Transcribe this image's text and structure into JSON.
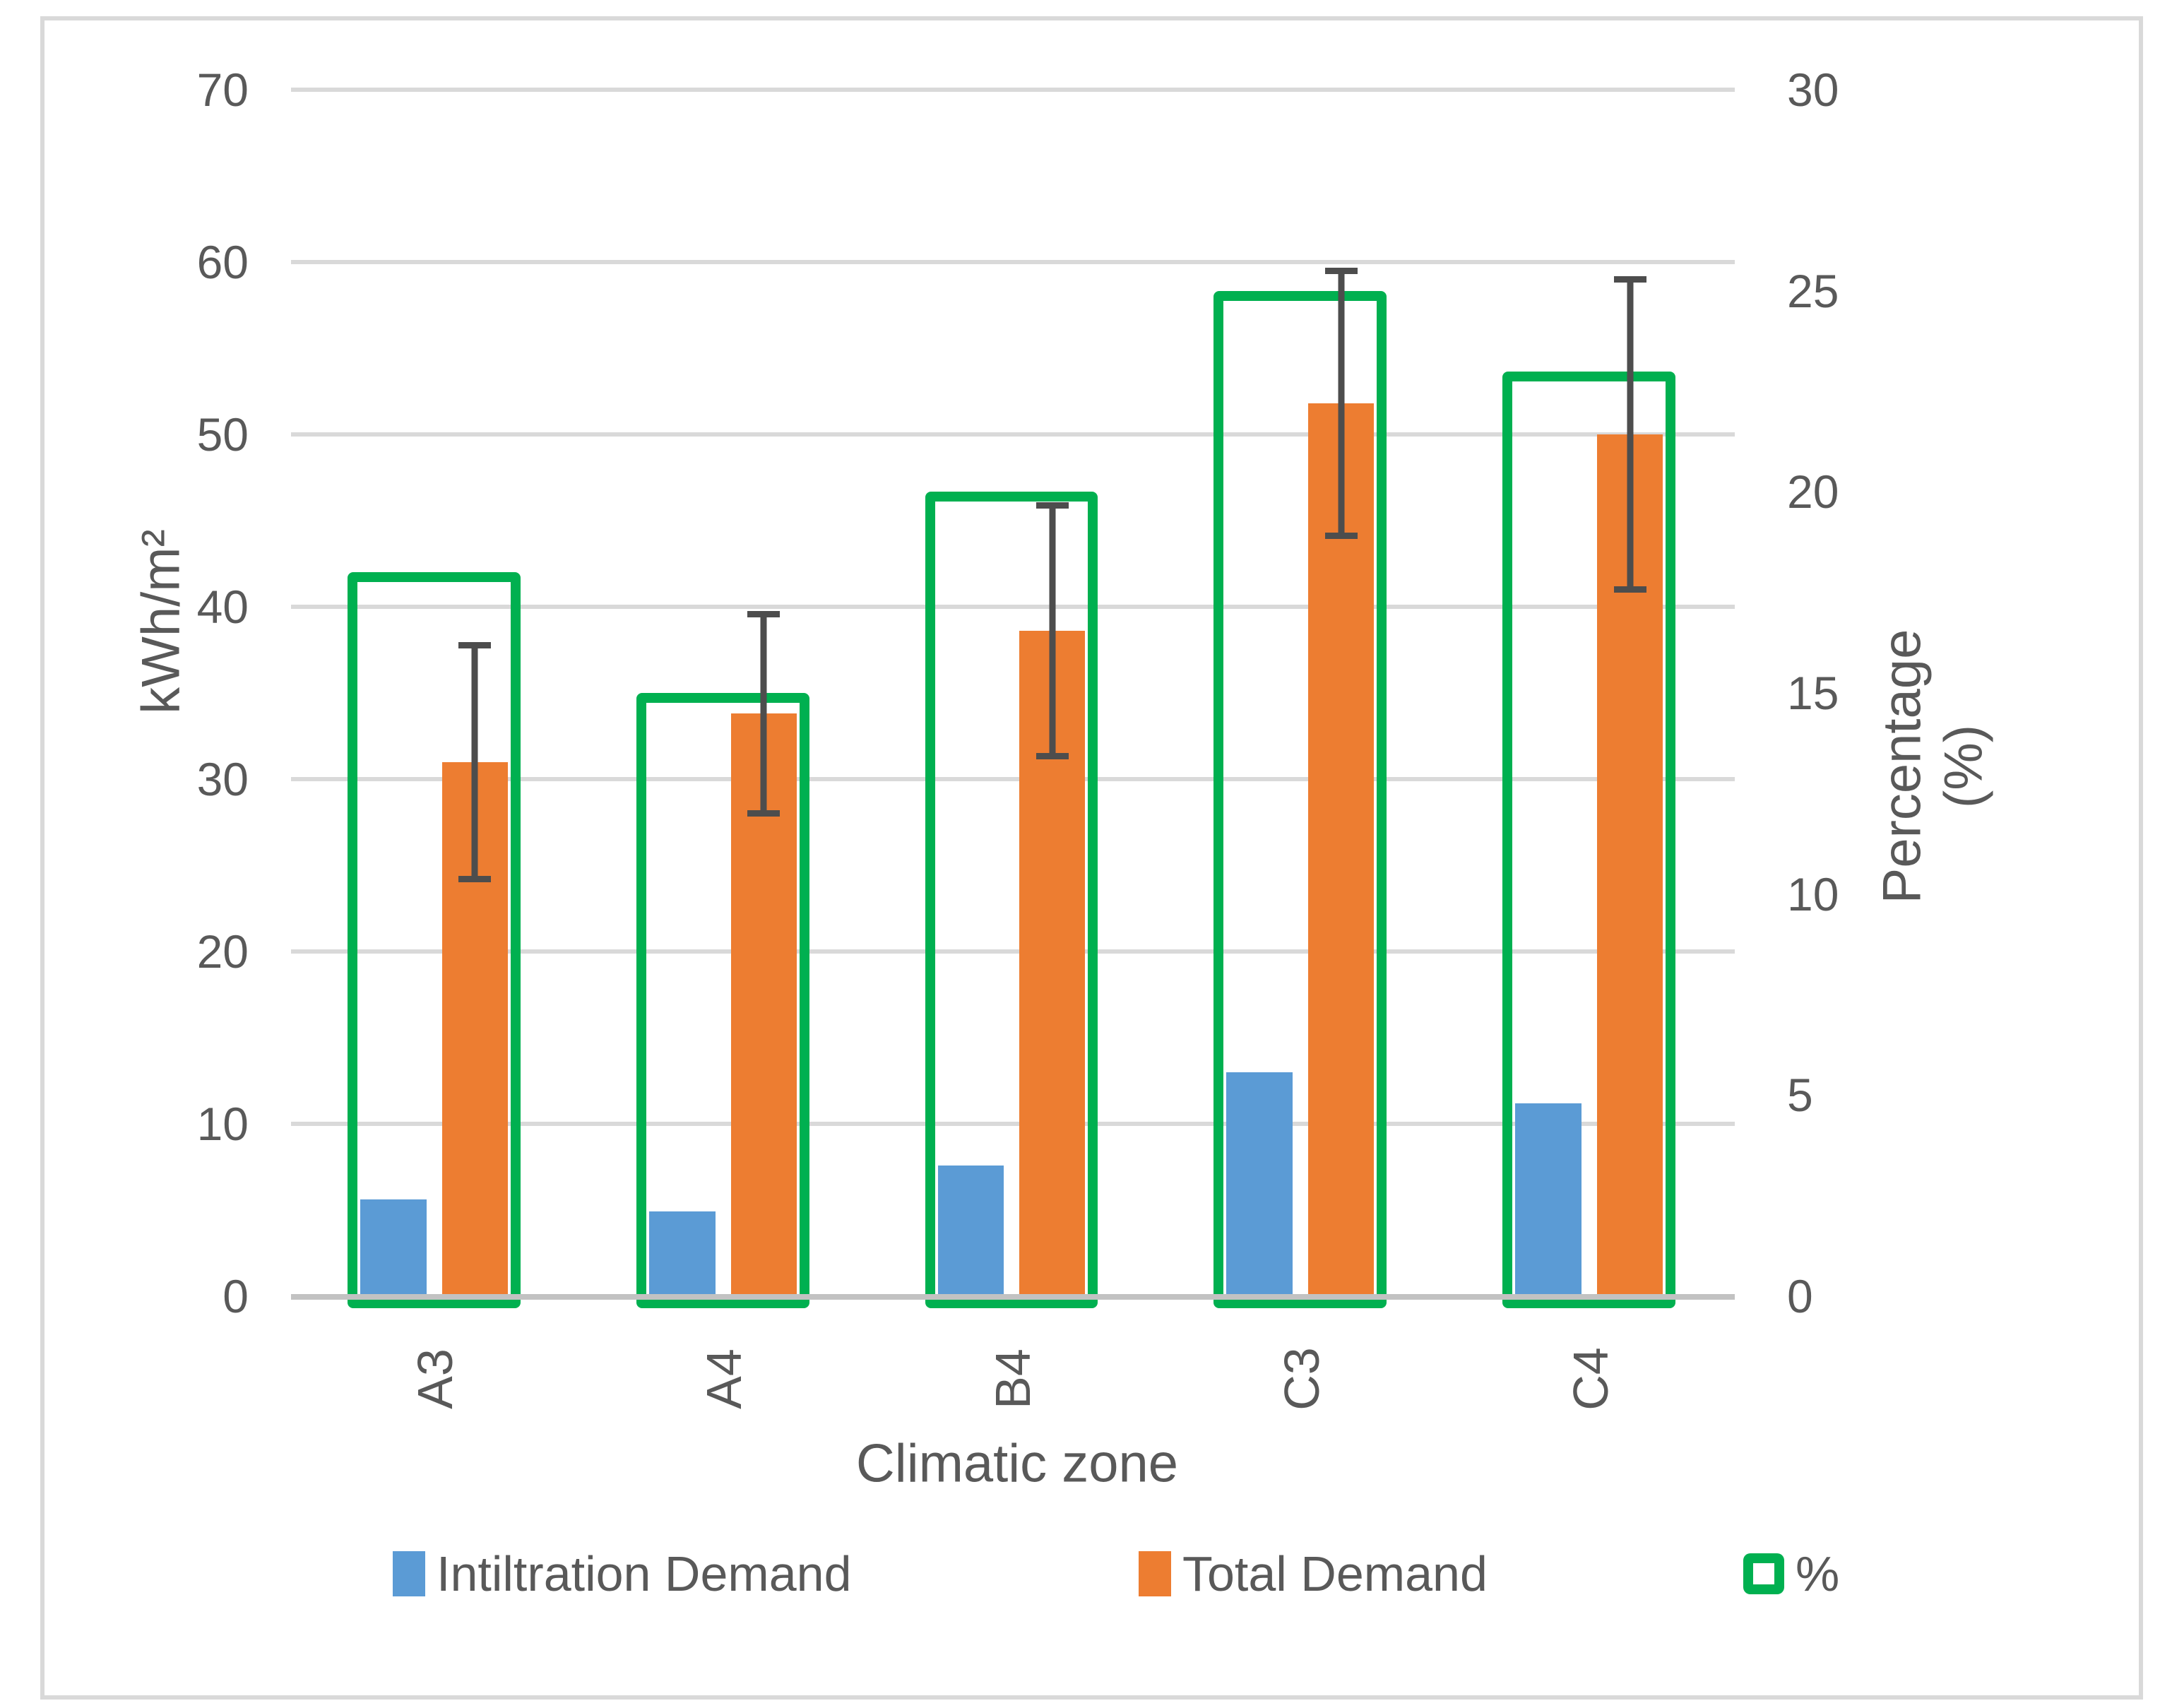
{
  "colors": {
    "blue": "#5B9BD5",
    "orange": "#ED7D31",
    "green": "#00B050",
    "grid": "#D9D9D9",
    "axis_line": "#C2C2C2",
    "error_bar": "#4D4D4D",
    "text": "#595959",
    "frame": "#D9D9D9"
  },
  "chart_data": {
    "type": "bar",
    "title": "",
    "categories": [
      "A3",
      "A4",
      "B4",
      "C3",
      "C4"
    ],
    "series": [
      {
        "name": "Intiltration Demand",
        "axis": "left",
        "color_key": "blue",
        "values": [
          5.6,
          4.9,
          7.6,
          13.0,
          11.2
        ]
      },
      {
        "name": "Total Demand",
        "axis": "left",
        "color_key": "orange",
        "values": [
          31.0,
          33.8,
          38.6,
          51.8,
          50.0
        ],
        "error_bars": {
          "upper": [
            37.8,
            39.6,
            45.9,
            59.5,
            59.0
          ],
          "lower": [
            24.2,
            28.0,
            31.3,
            44.1,
            41.0
          ]
        }
      },
      {
        "name": "%",
        "axis": "right",
        "style": "outline",
        "color_key": "green",
        "values": [
          18,
          15,
          20,
          25,
          23
        ]
      }
    ],
    "axes": {
      "left": {
        "title": "kWh/m²",
        "min": 0,
        "max": 70,
        "ticks": [
          70,
          60,
          50,
          40,
          30,
          20,
          10,
          0
        ]
      },
      "right": {
        "title": "Percentage (%)",
        "title_lines": [
          "Percentage",
          "(%)"
        ],
        "min": 0,
        "max": 30,
        "ticks": [
          30,
          25,
          20,
          15,
          10,
          5,
          0
        ]
      },
      "x": {
        "title": "Climatic zone"
      }
    },
    "grid": true,
    "legend_position": "bottom"
  },
  "legend": {
    "items": [
      {
        "label": "Intiltration Demand",
        "swatch": "blue-solid"
      },
      {
        "label": "Total Demand",
        "swatch": "orange-solid"
      },
      {
        "label": "%",
        "swatch": "green-outline"
      }
    ]
  }
}
